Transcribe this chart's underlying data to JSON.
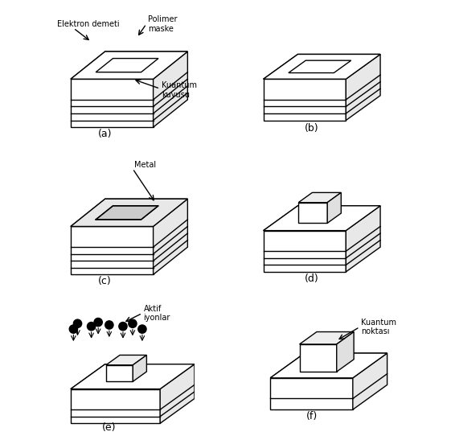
{
  "figure_title": "",
  "background_color": "#ffffff",
  "line_color": "#000000",
  "fill_color": "#ffffff",
  "face_color_top": "#f0f0f0",
  "face_color_side": "#e0e0e0",
  "labels": {
    "a": "(a)",
    "b": "(b)",
    "c": "(c)",
    "d": "(d)",
    "e": "(e)",
    "f": "(f)"
  },
  "annotations": {
    "a": {
      "elektron": "Elektron demeti",
      "polimer": "Polimer\nmaske",
      "kuantum": "Kuantum\nkuyusu"
    },
    "c": {
      "metal": "Metal"
    },
    "e": {
      "aktif": "Aktif\niyonlar"
    },
    "f": {
      "kuantum_noktasi": "Kuantum\nnoktası"
    }
  }
}
